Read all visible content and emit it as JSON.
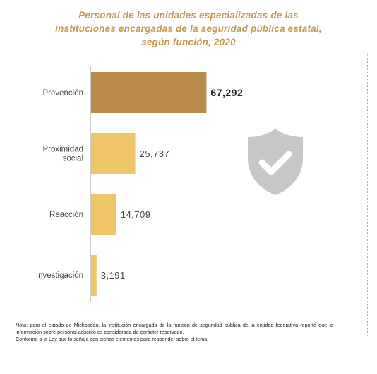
{
  "title_lines": [
    "Personal de las unidades especializadas de las",
    "instituciones encargadas de la seguridad pública estatal,",
    "según función, 2020"
  ],
  "colors": {
    "title": "#c49a52",
    "bar_highlight": "#b88c48",
    "bar_default": "#efc56a",
    "axis": "#9a9a9a",
    "shield": "#c7c7c7"
  },
  "icon": "shield-check-icon",
  "chart_data": {
    "type": "bar",
    "orientation": "horizontal",
    "title": "Personal de las unidades especializadas de las instituciones encargadas de la seguridad pública estatal, según función, 2020",
    "categories": [
      "Prevención",
      "Proximidad social",
      "Reacción",
      "Investigación"
    ],
    "category_lines": [
      [
        "Prevención"
      ],
      [
        "Proximidad",
        "social"
      ],
      [
        "Reacción"
      ],
      [
        "Investigación"
      ]
    ],
    "values": [
      67292,
      25737,
      14709,
      3191
    ],
    "value_labels": [
      "67,292",
      "25,737",
      "14,709",
      "3,191"
    ],
    "highlight_index": 0,
    "xlim": [
      0,
      70000
    ],
    "grid": false,
    "legend": "none"
  },
  "footnote": [
    "Nota: para el estado de Michoacán, la institución encargada de la función de seguridad pública de la entidad federativa reportó que la información sobre personal adscrito es considerada de carácter reservado.",
    "Conforme a la Ley que lo señala con dichos elementos para responder sobre el tema."
  ]
}
